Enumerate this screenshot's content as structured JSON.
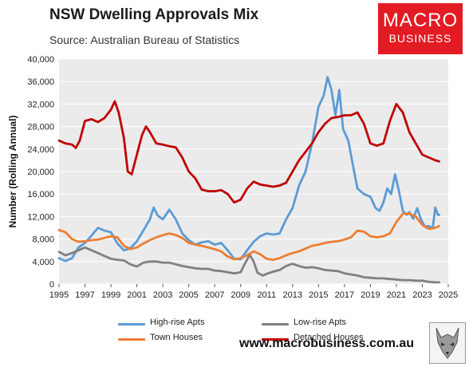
{
  "header": {
    "title": "NSW Dwelling Approvals Mix",
    "source": "Source: Australian Bureau of Statistics"
  },
  "logo": {
    "line1": "MACRO",
    "line2": "BUSINESS",
    "color": "#e31b23"
  },
  "footer": {
    "website": "www.macrobusiness.com.au"
  },
  "chart_data": {
    "type": "line",
    "title": "NSW Dwelling Approvals Mix",
    "ylabel": "Number (Rolling Annual)",
    "xlabel": "",
    "xlim": [
      1995,
      2025
    ],
    "ylim": [
      0,
      40000
    ],
    "grid": true,
    "legend_position": "bottom",
    "x_ticks": [
      "1995",
      "1997",
      "1999",
      "2001",
      "2003",
      "2005",
      "2007",
      "2009",
      "2011",
      "2013",
      "2015",
      "2017",
      "2019",
      "2021",
      "2023",
      "2025"
    ],
    "y_ticks": [
      "0",
      "4,000",
      "8,000",
      "12,000",
      "16,000",
      "20,000",
      "24,000",
      "28,000",
      "32,000",
      "36,000",
      "40,000"
    ],
    "series": [
      {
        "name": "High-rise Apts",
        "color": "#5b9bd5",
        "points": [
          [
            1995,
            4600
          ],
          [
            1995.5,
            4100
          ],
          [
            1996,
            4600
          ],
          [
            1996.5,
            6500
          ],
          [
            1997,
            7300
          ],
          [
            1997.5,
            8600
          ],
          [
            1998,
            10000
          ],
          [
            1998.5,
            9500
          ],
          [
            1999,
            9200
          ],
          [
            1999.5,
            7200
          ],
          [
            2000,
            6000
          ],
          [
            2000.3,
            6200
          ],
          [
            2000.6,
            6600
          ],
          [
            2001,
            7600
          ],
          [
            2001.5,
            9500
          ],
          [
            2002,
            11500
          ],
          [
            2002.3,
            13600
          ],
          [
            2002.6,
            12200
          ],
          [
            2003,
            11500
          ],
          [
            2003.5,
            13200
          ],
          [
            2004,
            11500
          ],
          [
            2004.5,
            9000
          ],
          [
            2005,
            7800
          ],
          [
            2005.5,
            7000
          ],
          [
            2006,
            7400
          ],
          [
            2006.5,
            7600
          ],
          [
            2007,
            7000
          ],
          [
            2007.5,
            7300
          ],
          [
            2008,
            6000
          ],
          [
            2008.5,
            4500
          ],
          [
            2009,
            4400
          ],
          [
            2009.5,
            6000
          ],
          [
            2010,
            7500
          ],
          [
            2010.5,
            8500
          ],
          [
            2011,
            9000
          ],
          [
            2011.5,
            8800
          ],
          [
            2012,
            9000
          ],
          [
            2012.5,
            11500
          ],
          [
            2013,
            13500
          ],
          [
            2013.5,
            17500
          ],
          [
            2014,
            20000
          ],
          [
            2014.5,
            25000
          ],
          [
            2015,
            31500
          ],
          [
            2015.4,
            33500
          ],
          [
            2015.7,
            36800
          ],
          [
            2016,
            34500
          ],
          [
            2016.3,
            30000
          ],
          [
            2016.6,
            34500
          ],
          [
            2016.9,
            27500
          ],
          [
            2017.3,
            25500
          ],
          [
            2017.7,
            20500
          ],
          [
            2018,
            17000
          ],
          [
            2018.5,
            16000
          ],
          [
            2019,
            15500
          ],
          [
            2019.4,
            13500
          ],
          [
            2019.7,
            13000
          ],
          [
            2020,
            14500
          ],
          [
            2020.3,
            17000
          ],
          [
            2020.6,
            16000
          ],
          [
            2020.9,
            19500
          ],
          [
            2021.2,
            16500
          ],
          [
            2021.5,
            13000
          ],
          [
            2021.8,
            12300
          ],
          [
            2022,
            12800
          ],
          [
            2022.3,
            11600
          ],
          [
            2022.6,
            13500
          ],
          [
            2022.9,
            11500
          ],
          [
            2023.2,
            10200
          ],
          [
            2023.5,
            10300
          ],
          [
            2023.8,
            9900
          ],
          [
            2024,
            13600
          ],
          [
            2024.2,
            12300
          ],
          [
            2024.3,
            12300
          ]
        ]
      },
      {
        "name": "Low-rise Apts",
        "color": "#808080",
        "points": [
          [
            1995,
            5700
          ],
          [
            1995.5,
            5100
          ],
          [
            1996,
            5500
          ],
          [
            1996.5,
            6000
          ],
          [
            1997,
            6500
          ],
          [
            1997.5,
            6000
          ],
          [
            1998,
            5500
          ],
          [
            1998.5,
            5000
          ],
          [
            1999,
            4500
          ],
          [
            1999.5,
            4300
          ],
          [
            2000,
            4200
          ],
          [
            2000.5,
            3500
          ],
          [
            2001,
            3100
          ],
          [
            2001.5,
            3800
          ],
          [
            2002,
            4000
          ],
          [
            2002.5,
            4000
          ],
          [
            2003,
            3800
          ],
          [
            2003.5,
            3800
          ],
          [
            2004,
            3500
          ],
          [
            2004.5,
            3200
          ],
          [
            2005,
            3000
          ],
          [
            2005.5,
            2800
          ],
          [
            2006,
            2700
          ],
          [
            2006.5,
            2700
          ],
          [
            2007,
            2400
          ],
          [
            2007.5,
            2300
          ],
          [
            2008,
            2100
          ],
          [
            2008.5,
            1900
          ],
          [
            2009,
            2100
          ],
          [
            2009.3,
            3500
          ],
          [
            2009.7,
            5200
          ],
          [
            2010,
            4000
          ],
          [
            2010.3,
            2000
          ],
          [
            2010.7,
            1500
          ],
          [
            2011,
            1800
          ],
          [
            2011.5,
            2200
          ],
          [
            2012,
            2500
          ],
          [
            2012.5,
            3200
          ],
          [
            2013,
            3600
          ],
          [
            2013.5,
            3200
          ],
          [
            2014,
            2900
          ],
          [
            2014.5,
            3000
          ],
          [
            2015,
            2800
          ],
          [
            2015.5,
            2500
          ],
          [
            2016,
            2400
          ],
          [
            2016.5,
            2300
          ],
          [
            2017,
            1900
          ],
          [
            2017.5,
            1700
          ],
          [
            2018,
            1500
          ],
          [
            2018.5,
            1200
          ],
          [
            2019,
            1100
          ],
          [
            2019.5,
            1000
          ],
          [
            2020,
            1000
          ],
          [
            2020.5,
            900
          ],
          [
            2021,
            800
          ],
          [
            2021.5,
            700
          ],
          [
            2022,
            700
          ],
          [
            2022.5,
            600
          ],
          [
            2023,
            600
          ],
          [
            2023.5,
            400
          ],
          [
            2024,
            300
          ],
          [
            2024.3,
            300
          ]
        ]
      },
      {
        "name": "Town Houses",
        "color": "#ed7d31",
        "points": [
          [
            1995,
            9600
          ],
          [
            1995.5,
            9200
          ],
          [
            1996,
            8000
          ],
          [
            1996.5,
            7500
          ],
          [
            1997,
            7600
          ],
          [
            1997.5,
            7800
          ],
          [
            1998,
            7900
          ],
          [
            1998.5,
            8200
          ],
          [
            1999,
            8500
          ],
          [
            1999.5,
            8300
          ],
          [
            2000,
            6800
          ],
          [
            2000.5,
            6200
          ],
          [
            2001,
            6500
          ],
          [
            2001.5,
            7200
          ],
          [
            2002,
            7800
          ],
          [
            2002.5,
            8300
          ],
          [
            2003,
            8700
          ],
          [
            2003.5,
            9000
          ],
          [
            2004,
            8700
          ],
          [
            2004.5,
            8200
          ],
          [
            2005,
            7300
          ],
          [
            2005.5,
            7000
          ],
          [
            2006,
            6800
          ],
          [
            2006.5,
            6500
          ],
          [
            2007,
            6200
          ],
          [
            2007.5,
            5800
          ],
          [
            2008,
            4900
          ],
          [
            2008.5,
            4400
          ],
          [
            2009,
            4600
          ],
          [
            2009.5,
            5100
          ],
          [
            2010,
            5800
          ],
          [
            2010.5,
            5300
          ],
          [
            2011,
            4500
          ],
          [
            2011.5,
            4300
          ],
          [
            2012,
            4600
          ],
          [
            2012.5,
            5100
          ],
          [
            2013,
            5500
          ],
          [
            2013.5,
            5800
          ],
          [
            2014,
            6300
          ],
          [
            2014.5,
            6800
          ],
          [
            2015,
            7000
          ],
          [
            2015.5,
            7300
          ],
          [
            2016,
            7500
          ],
          [
            2016.5,
            7600
          ],
          [
            2017,
            7900
          ],
          [
            2017.5,
            8300
          ],
          [
            2018,
            9500
          ],
          [
            2018.5,
            9300
          ],
          [
            2019,
            8500
          ],
          [
            2019.5,
            8300
          ],
          [
            2020,
            8500
          ],
          [
            2020.5,
            9000
          ],
          [
            2021,
            11000
          ],
          [
            2021.5,
            12500
          ],
          [
            2022,
            12500
          ],
          [
            2022.5,
            12000
          ],
          [
            2023,
            10500
          ],
          [
            2023.5,
            9800
          ],
          [
            2024,
            10000
          ],
          [
            2024.3,
            10300
          ]
        ]
      },
      {
        "name": "Detached Houses",
        "color": "#c00000",
        "points": [
          [
            1995,
            25500
          ],
          [
            1995.5,
            25000
          ],
          [
            1996,
            24800
          ],
          [
            1996.3,
            24200
          ],
          [
            1996.6,
            25500
          ],
          [
            1997,
            29000
          ],
          [
            1997.5,
            29300
          ],
          [
            1998,
            28800
          ],
          [
            1998.5,
            29500
          ],
          [
            1999,
            31000
          ],
          [
            1999.3,
            32500
          ],
          [
            1999.6,
            30500
          ],
          [
            2000,
            26000
          ],
          [
            2000.3,
            20000
          ],
          [
            2000.6,
            19500
          ],
          [
            2001,
            23000
          ],
          [
            2001.4,
            26500
          ],
          [
            2001.7,
            28000
          ],
          [
            2002,
            27000
          ],
          [
            2002.5,
            25000
          ],
          [
            2003,
            24800
          ],
          [
            2003.5,
            24500
          ],
          [
            2004,
            24300
          ],
          [
            2004.5,
            22500
          ],
          [
            2005,
            20000
          ],
          [
            2005.5,
            18800
          ],
          [
            2006,
            16800
          ],
          [
            2006.5,
            16500
          ],
          [
            2007,
            16500
          ],
          [
            2007.5,
            16700
          ],
          [
            2008,
            16000
          ],
          [
            2008.5,
            14500
          ],
          [
            2009,
            15000
          ],
          [
            2009.5,
            17000
          ],
          [
            2010,
            18200
          ],
          [
            2010.5,
            17700
          ],
          [
            2011,
            17500
          ],
          [
            2011.5,
            17300
          ],
          [
            2012,
            17500
          ],
          [
            2012.5,
            18000
          ],
          [
            2013,
            20000
          ],
          [
            2013.5,
            22000
          ],
          [
            2014,
            23500
          ],
          [
            2014.5,
            25000
          ],
          [
            2015,
            27000
          ],
          [
            2015.5,
            28500
          ],
          [
            2016,
            29500
          ],
          [
            2016.5,
            29700
          ],
          [
            2017,
            30000
          ],
          [
            2017.5,
            30000
          ],
          [
            2018,
            30500
          ],
          [
            2018.5,
            28500
          ],
          [
            2019,
            25000
          ],
          [
            2019.5,
            24600
          ],
          [
            2020,
            25000
          ],
          [
            2020.5,
            29000
          ],
          [
            2021,
            32000
          ],
          [
            2021.5,
            30500
          ],
          [
            2022,
            27000
          ],
          [
            2022.5,
            25000
          ],
          [
            2023,
            23000
          ],
          [
            2023.5,
            22500
          ],
          [
            2024,
            22000
          ],
          [
            2024.3,
            21800
          ]
        ]
      }
    ]
  }
}
